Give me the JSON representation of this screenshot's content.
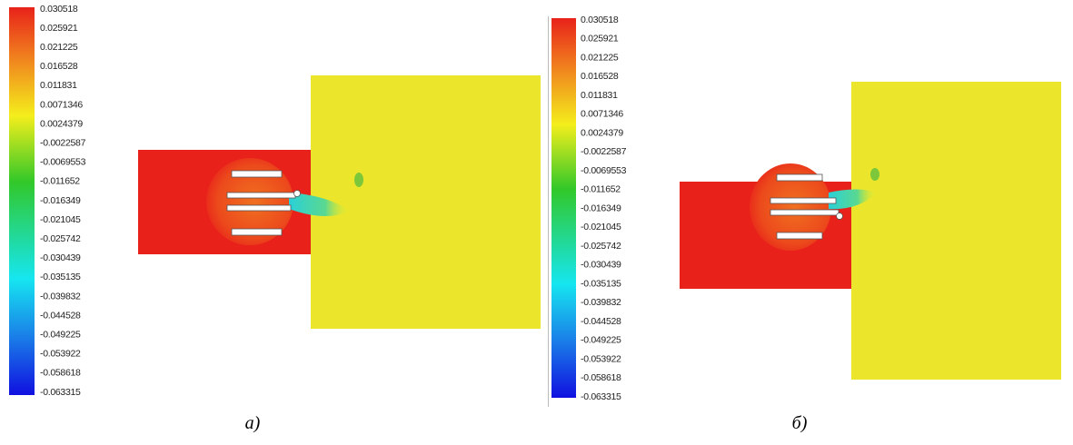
{
  "panels": [
    {
      "colorbar_labels": [
        "0.030518",
        "0.025921",
        "0.021225",
        "0.016528",
        "0.011831",
        "0.0071346",
        "0.0024379",
        "-0.0022587",
        "-0.0069553",
        "-0.011652",
        "-0.016349",
        "-0.021045",
        "-0.025742",
        "-0.030439",
        "-0.035135",
        "-0.039832",
        "-0.044528",
        "-0.049225",
        "-0.053922",
        "-0.058618",
        "-0.063315"
      ],
      "caption": "а)"
    },
    {
      "colorbar_labels": [
        "0.030518",
        "0.025921",
        "0.021225",
        "0.016528",
        "0.011831",
        "0.0071346",
        "0.0024379",
        "-0.0022587",
        "-0.0069553",
        "-0.011652",
        "-0.016349",
        "-0.021045",
        "-0.025742",
        "-0.030439",
        "-0.035135",
        "-0.039832",
        "-0.044528",
        "-0.049225",
        "-0.053922",
        "-0.058618",
        "-0.063315"
      ],
      "caption": "б)"
    }
  ]
}
